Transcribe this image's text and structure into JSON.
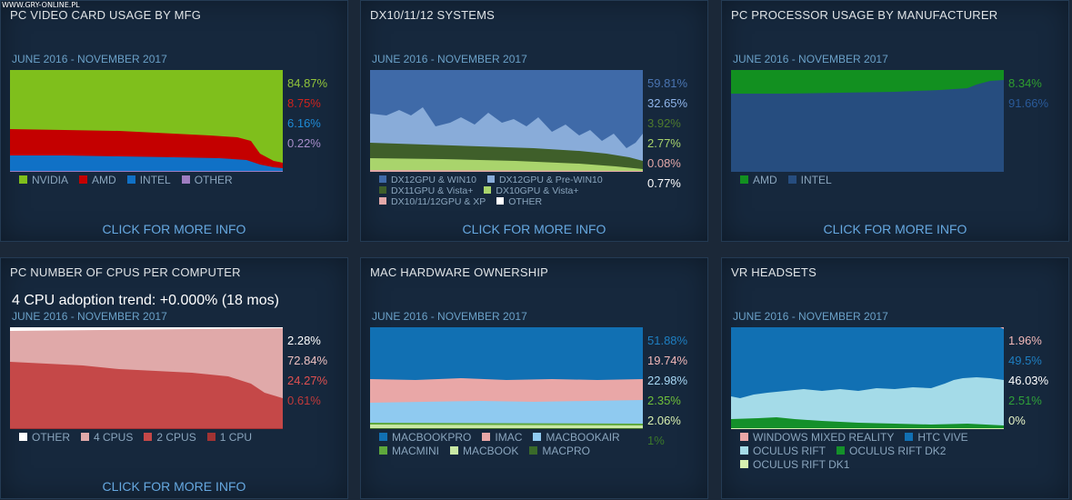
{
  "watermark": "WWW.GRY-ONLINE.PL",
  "more_info_label": "CLICK FOR MORE INFO",
  "panels": [
    {
      "title": "PC VIDEO CARD USAGE BY MFG",
      "period": "JUNE 2016 - NOVEMBER 2017",
      "values": [
        "84.87%",
        "8.75%",
        "6.16%",
        "0.22%"
      ],
      "value_colors": [
        "#91c43a",
        "#d0231d",
        "#1e8bd6",
        "#a78dc9"
      ],
      "legend": [
        {
          "label": "NVIDIA",
          "color": "#7fbf1c"
        },
        {
          "label": "AMD",
          "color": "#c40000"
        },
        {
          "label": "INTEL",
          "color": "#1071c6"
        },
        {
          "label": "OTHER",
          "color": "#9e7dc1"
        }
      ],
      "legend_columns": 4,
      "show_more": true
    },
    {
      "title": "DX10/11/12 SYSTEMS",
      "period": "JUNE 2016 - NOVEMBER 2017",
      "values": [
        "59.81%",
        "32.65%",
        "3.92%",
        "2.77%",
        "0.08%",
        "0.77%"
      ],
      "value_colors": [
        "#4a74b1",
        "#8fb4ea",
        "#4e7a2e",
        "#a9d46c",
        "#e3a8a8",
        "#ffffff"
      ],
      "legend": [
        {
          "label": "DX12GPU & WIN10",
          "color": "#3f6aa8"
        },
        {
          "label": "DX12GPU & Pre-WIN10",
          "color": "#89acd9"
        },
        {
          "label": "DX11GPU & Vista+",
          "color": "#3f5f2a"
        },
        {
          "label": "DX10GPU & Vista+",
          "color": "#a9d46c"
        },
        {
          "label": "DX10/11/12GPU & XP",
          "color": "#e3a8a8"
        },
        {
          "label": "OTHER",
          "color": "#ffffff"
        }
      ],
      "legend_columns": 2,
      "show_more": true
    },
    {
      "title": "PC PROCESSOR USAGE BY MANUFACTURER",
      "period": "JUNE 2016 - NOVEMBER 2017",
      "values": [
        "8.34%",
        "91.66%"
      ],
      "value_colors": [
        "#2f9e2f",
        "#2a5a99"
      ],
      "legend": [
        {
          "label": "AMD",
          "color": "#129020"
        },
        {
          "label": "INTEL",
          "color": "#264d7f"
        }
      ],
      "legend_columns": 2,
      "show_more": true
    },
    {
      "title": "PC NUMBER OF CPUS PER COMPUTER",
      "trend": "4 CPU adoption trend: +0.000% (18 mos)",
      "period": "JUNE 2016 - NOVEMBER 2017",
      "values": [
        "2.28%",
        "72.84%",
        "24.27%",
        "0.61%"
      ],
      "value_colors": [
        "#ffffff",
        "#ecc0c0",
        "#e05050",
        "#c03a3a"
      ],
      "legend": [
        {
          "label": "OTHER",
          "color": "#ffffff"
        },
        {
          "label": "4 CPUS",
          "color": "#e0a9a9"
        },
        {
          "label": "2 CPUS",
          "color": "#c54848"
        },
        {
          "label": "1 CPU",
          "color": "#a23333"
        }
      ],
      "legend_columns": 4,
      "show_more": true
    },
    {
      "title": "MAC HARDWARE OWNERSHIP",
      "period": "JUNE 2016 - NOVEMBER 2017",
      "values": [
        "51.88%",
        "19.74%",
        "22.98%",
        "2.35%",
        "2.06%",
        "1%"
      ],
      "value_colors": [
        "#1e7fc2",
        "#f2b8b8",
        "#a8d8f5",
        "#6fbf3a",
        "#d9f0b0",
        "#3c7a2a"
      ],
      "legend": [
        {
          "label": "MACBOOKPRO",
          "color": "#1170b3"
        },
        {
          "label": "IMAC",
          "color": "#e9a7a7"
        },
        {
          "label": "MACBOOKAIR",
          "color": "#8fcaf0"
        },
        {
          "label": "MACMINI",
          "color": "#5ea83c"
        },
        {
          "label": "MACBOOK",
          "color": "#c9e8a4"
        },
        {
          "label": "MACPRO",
          "color": "#3a6a2a"
        }
      ],
      "legend_columns": 3,
      "show_more": false
    },
    {
      "title": "VR HEADSETS",
      "period": "JUNE 2016 - NOVEMBER 2017",
      "values": [
        "1.96%",
        "49.5%",
        "46.03%",
        "2.51%",
        "0%"
      ],
      "value_colors": [
        "#f2b8b8",
        "#1e7fc2",
        "#ffffff",
        "#2fa03a",
        "#e8f5c8"
      ],
      "legend": [
        {
          "label": "WINDOWS MIXED REALITY",
          "color": "#e9a7a7"
        },
        {
          "label": "HTC VIVE",
          "color": "#1170b3"
        },
        {
          "label": "OCULUS RIFT",
          "color": "#a4dbe8"
        },
        {
          "label": "OCULUS RIFT DK2",
          "color": "#14902a"
        },
        {
          "label": "OCULUS RIFT DK1",
          "color": "#d7f0b0"
        }
      ],
      "legend_columns": 2,
      "show_more": false
    }
  ]
}
